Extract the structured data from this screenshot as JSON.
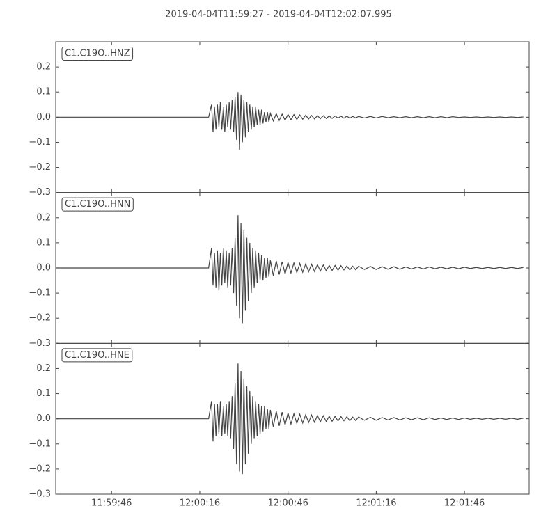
{
  "chart_data": [
    {
      "type": "line",
      "title": "2019-04-04T11:59:27  -  2019-04-04T12:02:07.995",
      "xlim": [
        43167,
        43327.995
      ],
      "ylim": [
        -0.3,
        0.3
      ],
      "yticks": [
        {
          "value": -0.3,
          "label": "−0.3"
        },
        {
          "value": -0.2,
          "label": "−0.2"
        },
        {
          "value": -0.1,
          "label": "−0.1"
        },
        {
          "value": 0,
          "label": "0.0"
        },
        0.1,
        0.2
      ],
      "x": [
        43167,
        43219,
        43220,
        43220.5,
        43221,
        43221.5,
        43222,
        43222.5,
        43223,
        43223.5,
        43224,
        43224.5,
        43225,
        43225.5,
        43226,
        43226.5,
        43227,
        43227.5,
        43228,
        43228.5,
        43229,
        43229.5,
        43230,
        43230.5,
        43231,
        43231.5,
        43232,
        43232.5,
        43233,
        43233.5,
        43234,
        43234.5,
        43235,
        43235.5,
        43236,
        43236.5,
        43237,
        43237.5,
        43238,
        43238.5,
        43239,
        43239.5,
        43240,
        43241,
        43242,
        43243,
        43244,
        43245,
        43246,
        43247,
        43248,
        43249,
        43250,
        43251,
        43252,
        43253,
        43254,
        43255,
        43256,
        43257,
        43258,
        43259,
        43260,
        43261,
        43262,
        43263,
        43264,
        43265,
        43266,
        43267,
        43268,
        43269,
        43270,
        43272,
        43274,
        43276,
        43278,
        43280,
        43282,
        43284,
        43286,
        43288,
        43290,
        43292,
        43294,
        43296,
        43298,
        43300,
        43302,
        43304,
        43306,
        43308,
        43310,
        43312,
        43314,
        43316,
        43318,
        43320,
        43322,
        43324,
        43326
      ],
      "series": [
        {
          "name": "C1.C19O..HNZ",
          "color": "#444444",
          "values": [
            0,
            0,
            0.05,
            -0.06,
            0.04,
            -0.05,
            0.05,
            -0.04,
            0.06,
            -0.05,
            0.04,
            -0.06,
            0.05,
            -0.04,
            0.06,
            -0.05,
            0.07,
            -0.06,
            0.08,
            -0.09,
            0.1,
            -0.13,
            0.09,
            -0.1,
            0.07,
            -0.08,
            0.06,
            -0.06,
            0.05,
            -0.05,
            0.04,
            -0.04,
            0.04,
            -0.03,
            0.03,
            -0.03,
            0.03,
            -0.025,
            0.02,
            -0.02,
            0.02,
            -0.02,
            0.015,
            -0.015,
            0.014,
            -0.013,
            0.012,
            -0.012,
            0.011,
            -0.01,
            0.01,
            -0.009,
            0.009,
            -0.008,
            0.008,
            -0.007,
            0.007,
            -0.007,
            0.006,
            -0.006,
            0.006,
            -0.005,
            0.005,
            -0.005,
            0.005,
            -0.004,
            0.004,
            -0.004,
            0.004,
            -0.004,
            0.003,
            -0.003,
            0.003,
            -0.003,
            0.003,
            -0.003,
            0.003,
            -0.002,
            0.002,
            -0.002,
            0.002,
            -0.002,
            0.002,
            -0.002,
            0.002,
            -0.002,
            0.002,
            -0.002,
            0.002,
            -0.001,
            0.001,
            -0.001,
            0.001,
            -0.001,
            0.001,
            -0.001,
            0.001,
            -0.001,
            0.001,
            -0.001,
            0.001
          ]
        }
      ]
    },
    {
      "type": "line",
      "xlim": [
        43167,
        43327.995
      ],
      "ylim": [
        -0.3,
        0.3
      ],
      "yticks": [
        {
          "value": -0.3,
          "label": "−0.3"
        },
        {
          "value": -0.2,
          "label": "−0.2"
        },
        {
          "value": -0.1,
          "label": "−0.1"
        },
        {
          "value": 0,
          "label": "0.0"
        },
        0.1,
        0.2
      ],
      "x": [
        43167,
        43219,
        43220,
        43220.5,
        43221,
        43221.5,
        43222,
        43222.5,
        43223,
        43223.5,
        43224,
        43224.5,
        43225,
        43225.5,
        43226,
        43226.5,
        43227,
        43227.5,
        43228,
        43228.5,
        43229,
        43229.5,
        43230,
        43230.5,
        43231,
        43231.5,
        43232,
        43232.5,
        43233,
        43233.5,
        43234,
        43234.5,
        43235,
        43235.5,
        43236,
        43236.5,
        43237,
        43237.5,
        43238,
        43238.5,
        43239,
        43239.5,
        43240,
        43241,
        43242,
        43243,
        43244,
        43245,
        43246,
        43247,
        43248,
        43249,
        43250,
        43251,
        43252,
        43253,
        43254,
        43255,
        43256,
        43257,
        43258,
        43259,
        43260,
        43261,
        43262,
        43263,
        43264,
        43265,
        43266,
        43267,
        43268,
        43269,
        43270,
        43272,
        43274,
        43276,
        43278,
        43280,
        43282,
        43284,
        43286,
        43288,
        43290,
        43292,
        43294,
        43296,
        43298,
        43300,
        43302,
        43304,
        43306,
        43308,
        43310,
        43312,
        43314,
        43316,
        43318,
        43320,
        43322,
        43324,
        43326
      ],
      "series": [
        {
          "name": "C1.C19O..HNN",
          "color": "#444444",
          "values": [
            0,
            0,
            0.08,
            -0.07,
            0.06,
            -0.08,
            0.07,
            -0.09,
            0.06,
            -0.07,
            0.08,
            -0.06,
            0.07,
            -0.08,
            0.06,
            -0.07,
            0.08,
            -0.1,
            0.12,
            -0.15,
            0.21,
            -0.2,
            0.18,
            -0.22,
            0.15,
            -0.17,
            0.12,
            -0.13,
            0.1,
            -0.1,
            0.08,
            -0.08,
            0.07,
            -0.06,
            0.06,
            -0.05,
            0.05,
            -0.05,
            0.04,
            -0.04,
            0.04,
            -0.035,
            0.03,
            -0.03,
            0.028,
            -0.026,
            0.025,
            -0.024,
            0.022,
            -0.02,
            0.02,
            -0.019,
            0.018,
            -0.017,
            0.016,
            -0.015,
            0.015,
            -0.014,
            0.013,
            -0.012,
            0.012,
            -0.011,
            0.01,
            -0.01,
            0.01,
            -0.009,
            0.009,
            -0.008,
            0.008,
            -0.008,
            0.007,
            -0.007,
            0.007,
            -0.006,
            0.006,
            -0.006,
            0.005,
            -0.005,
            0.005,
            -0.005,
            0.004,
            -0.004,
            0.004,
            -0.004,
            0.004,
            -0.003,
            0.003,
            -0.003,
            0.003,
            -0.003,
            0.003,
            -0.002,
            0.002,
            -0.002,
            0.002,
            -0.002,
            0.002,
            -0.002,
            0.002,
            -0.002,
            0.002
          ]
        }
      ]
    },
    {
      "type": "line",
      "xlim": [
        43167,
        43327.995
      ],
      "ylim": [
        -0.3,
        0.3
      ],
      "yticks": [
        {
          "value": -0.3,
          "label": "−0.3"
        },
        {
          "value": -0.2,
          "label": "−0.2"
        },
        {
          "value": -0.1,
          "label": "−0.1"
        },
        {
          "value": 0,
          "label": "0.0"
        },
        0.1,
        0.2
      ],
      "xticks": [
        {
          "value": 43186,
          "label": "11:59:46"
        },
        {
          "value": 43216,
          "label": "12:00:16"
        },
        {
          "value": 43246,
          "label": "12:00:46"
        },
        {
          "value": 43276,
          "label": "12:01:16"
        },
        {
          "value": 43306,
          "label": "12:01:46"
        }
      ],
      "x": [
        43167,
        43219,
        43220,
        43220.5,
        43221,
        43221.5,
        43222,
        43222.5,
        43223,
        43223.5,
        43224,
        43224.5,
        43225,
        43225.5,
        43226,
        43226.5,
        43227,
        43227.5,
        43228,
        43228.5,
        43229,
        43229.5,
        43230,
        43230.5,
        43231,
        43231.5,
        43232,
        43232.5,
        43233,
        43233.5,
        43234,
        43234.5,
        43235,
        43235.5,
        43236,
        43236.5,
        43237,
        43237.5,
        43238,
        43238.5,
        43239,
        43239.5,
        43240,
        43241,
        43242,
        43243,
        43244,
        43245,
        43246,
        43247,
        43248,
        43249,
        43250,
        43251,
        43252,
        43253,
        43254,
        43255,
        43256,
        43257,
        43258,
        43259,
        43260,
        43261,
        43262,
        43263,
        43264,
        43265,
        43266,
        43267,
        43268,
        43269,
        43270,
        43272,
        43274,
        43276,
        43278,
        43280,
        43282,
        43284,
        43286,
        43288,
        43290,
        43292,
        43294,
        43296,
        43298,
        43300,
        43302,
        43304,
        43306,
        43308,
        43310,
        43312,
        43314,
        43316,
        43318,
        43320,
        43322,
        43324,
        43326
      ],
      "series": [
        {
          "name": "C1.C19O..HNE",
          "color": "#444444",
          "values": [
            0,
            0,
            0.07,
            -0.09,
            0.06,
            -0.07,
            0.06,
            -0.06,
            0.07,
            -0.07,
            0.05,
            -0.06,
            0.06,
            -0.07,
            0.07,
            -0.08,
            0.09,
            -0.12,
            0.14,
            -0.18,
            0.22,
            -0.21,
            0.19,
            -0.22,
            0.16,
            -0.18,
            0.13,
            -0.14,
            0.11,
            -0.1,
            0.09,
            -0.08,
            0.07,
            -0.07,
            0.06,
            -0.06,
            0.05,
            -0.05,
            0.05,
            -0.04,
            0.04,
            -0.04,
            0.035,
            -0.032,
            0.03,
            -0.028,
            0.026,
            -0.025,
            0.023,
            -0.021,
            0.02,
            -0.019,
            0.018,
            -0.017,
            0.016,
            -0.015,
            0.015,
            -0.014,
            0.013,
            -0.012,
            0.012,
            -0.011,
            0.01,
            -0.01,
            0.01,
            -0.009,
            0.009,
            -0.008,
            0.008,
            -0.008,
            0.007,
            -0.007,
            0.007,
            -0.006,
            0.006,
            -0.006,
            0.005,
            -0.005,
            0.005,
            -0.005,
            0.004,
            -0.004,
            0.004,
            -0.004,
            0.004,
            -0.003,
            0.003,
            -0.003,
            0.003,
            -0.003,
            0.003,
            -0.002,
            0.002,
            -0.002,
            0.002,
            -0.002,
            0.002,
            -0.002,
            0.002,
            -0.002,
            0.002
          ]
        }
      ]
    }
  ]
}
